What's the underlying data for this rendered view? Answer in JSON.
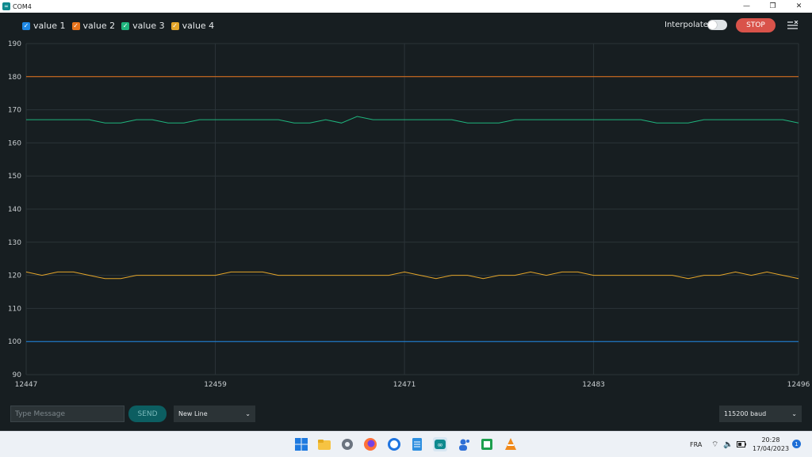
{
  "window": {
    "title": "COM4",
    "app_icon": "arduino-icon",
    "controls": [
      "minimize-icon",
      "restore-icon",
      "close-icon"
    ]
  },
  "legend": [
    {
      "label": "value 1",
      "color": "#1e88e5"
    },
    {
      "label": "value 2",
      "color": "#e8741c"
    },
    {
      "label": "value 3",
      "color": "#1fb57e"
    },
    {
      "label": "value 4",
      "color": "#e4a529"
    }
  ],
  "controls": {
    "interpolate_label": "Interpolate",
    "interpolate_on": false,
    "stop_label": "STOP",
    "clear_icon": "clear-list-icon"
  },
  "chart_data": {
    "type": "line",
    "x_ticks": [
      "12447",
      "12459",
      "12471",
      "12483",
      "12496"
    ],
    "y_ticks": [
      "190",
      "180",
      "170",
      "160",
      "150",
      "140",
      "130",
      "120",
      "110",
      "100",
      "90"
    ],
    "ylim": [
      90,
      190
    ],
    "xlim": [
      12447,
      12496
    ],
    "grid": true,
    "series": [
      {
        "name": "value 1",
        "color": "#1e88e5",
        "values": [
          100,
          100,
          100,
          100,
          100,
          100,
          100,
          100,
          100,
          100,
          100,
          100,
          100,
          100,
          100,
          100,
          100,
          100,
          100,
          100,
          100,
          100,
          100,
          100,
          100,
          100,
          100,
          100,
          100,
          100,
          100,
          100,
          100,
          100,
          100,
          100,
          100,
          100,
          100,
          100,
          100,
          100,
          100,
          100,
          100,
          100,
          100,
          100,
          100,
          100
        ]
      },
      {
        "name": "value 2",
        "color": "#e8741c",
        "values": [
          180,
          180,
          180,
          180,
          180,
          180,
          180,
          180,
          180,
          180,
          180,
          180,
          180,
          180,
          180,
          180,
          180,
          180,
          180,
          180,
          180,
          180,
          180,
          180,
          180,
          180,
          180,
          180,
          180,
          180,
          180,
          180,
          180,
          180,
          180,
          180,
          180,
          180,
          180,
          180,
          180,
          180,
          180,
          180,
          180,
          180,
          180,
          180,
          180,
          180
        ]
      },
      {
        "name": "value 3",
        "color": "#1fb57e",
        "values": [
          167,
          167,
          167,
          167,
          167,
          166,
          166,
          167,
          167,
          166,
          166,
          167,
          167,
          167,
          167,
          167,
          167,
          166,
          166,
          167,
          166,
          168,
          167,
          167,
          167,
          167,
          167,
          167,
          166,
          166,
          166,
          167,
          167,
          167,
          167,
          167,
          167,
          167,
          167,
          167,
          166,
          166,
          166,
          167,
          167,
          167,
          167,
          167,
          167,
          166
        ]
      },
      {
        "name": "value 4",
        "color": "#e4a529",
        "values": [
          121,
          120,
          121,
          121,
          120,
          119,
          119,
          120,
          120,
          120,
          120,
          120,
          120,
          121,
          121,
          121,
          120,
          120,
          120,
          120,
          120,
          120,
          120,
          120,
          121,
          120,
          119,
          120,
          120,
          119,
          120,
          120,
          121,
          120,
          121,
          121,
          120,
          120,
          120,
          120,
          120,
          120,
          119,
          120,
          120,
          121,
          120,
          121,
          120,
          119
        ]
      }
    ]
  },
  "bottom": {
    "message_placeholder": "Type Message",
    "send_label": "SEND",
    "line_ending": "New Line",
    "baud": "115200 baud"
  },
  "taskbar": {
    "icons": [
      "windows-start-icon",
      "file-explorer-icon",
      "settings-icon",
      "firefox-icon",
      "chat-icon",
      "notepad-icon",
      "arduino-ide-icon",
      "teams-icon",
      "spreadsheet-icon",
      "vlc-icon"
    ],
    "lang": "FRA",
    "time": "20:28",
    "date": "17/04/2023",
    "notifications": "1"
  }
}
